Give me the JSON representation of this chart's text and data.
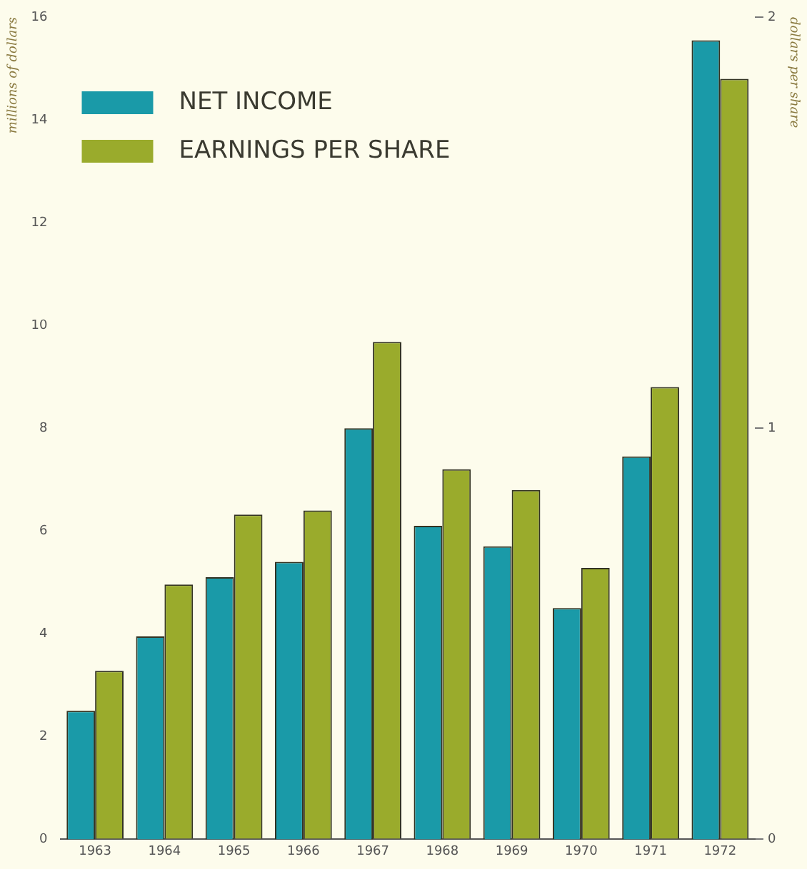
{
  "chart_data": {
    "type": "bar",
    "ylabel": "millions of dollars",
    "y2label": "dollars per share",
    "categories": [
      "1963",
      "1964",
      "1965",
      "1966",
      "1967",
      "1968",
      "1969",
      "1970",
      "1971",
      "1972"
    ],
    "series": [
      {
        "name": "NET INCOME",
        "color": "#1a9aa8",
        "values": [
          2.5,
          3.95,
          5.1,
          5.4,
          8.0,
          6.1,
          5.7,
          4.5,
          7.45,
          15.55
        ]
      },
      {
        "name": "EARNINGS PER SHARE",
        "color": "#9aab2c",
        "axis": "y2",
        "values": [
          0.41,
          0.62,
          0.79,
          0.8,
          1.21,
          0.9,
          0.85,
          0.66,
          1.1,
          1.85
        ]
      }
    ],
    "ylim": [
      0,
      16
    ],
    "yticks": [
      0,
      2,
      4,
      6,
      8,
      10,
      12,
      14,
      16
    ],
    "y2lim": [
      0,
      2
    ],
    "y2ticks": [
      0,
      1,
      2
    ],
    "grid": false,
    "legend": "top left"
  }
}
